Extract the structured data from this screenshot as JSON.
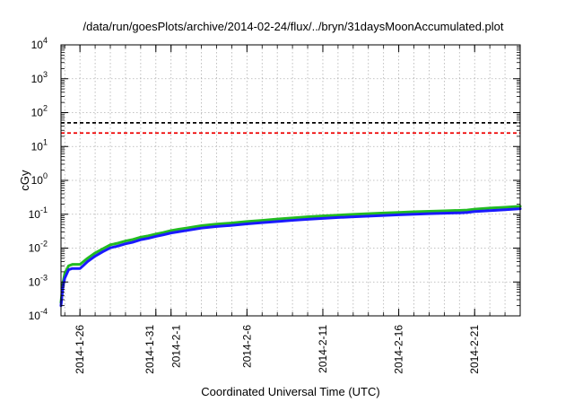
{
  "chart_data": {
    "type": "line",
    "title": "/data/run/goesPlots/archive/2014-02-24/flux/../bryn/31daysMoonAccumulated.plot",
    "xlabel": "Coordinated Universal Time (UTC)",
    "ylabel": "cGy",
    "y_scale": "log",
    "ylim": [
      0.0001,
      10000
    ],
    "xlim": [
      "2014-01-24T18:00",
      "2014-02-24T00:00"
    ],
    "grid": true,
    "y_ticks": [
      {
        "value": 0.0001,
        "base": "10",
        "exp": "-4"
      },
      {
        "value": 0.001,
        "base": "10",
        "exp": "-3"
      },
      {
        "value": 0.01,
        "base": "10",
        "exp": "-2"
      },
      {
        "value": 0.1,
        "base": "10",
        "exp": "-1"
      },
      {
        "value": 1,
        "base": "10",
        "exp": "0"
      },
      {
        "value": 10,
        "base": "10",
        "exp": "1"
      },
      {
        "value": 100,
        "base": "10",
        "exp": "2"
      },
      {
        "value": 1000,
        "base": "10",
        "exp": "3"
      },
      {
        "value": 10000,
        "base": "10",
        "exp": "4"
      }
    ],
    "x_ticks": [
      {
        "date": "2014-01-26",
        "label": "2014-1-26"
      },
      {
        "date": "2014-01-31",
        "label": "2014-1-31"
      },
      {
        "date": "2014-02-01",
        "label": "2014-2-1"
      },
      {
        "date": "2014-02-06",
        "label": "2014-2-6"
      },
      {
        "date": "2014-02-11",
        "label": "2014-2-11"
      },
      {
        "date": "2014-02-16",
        "label": "2014-2-16"
      },
      {
        "date": "2014-02-21",
        "label": "2014-2-21"
      }
    ],
    "reference_lines": [
      {
        "value": 50,
        "color": "#000000",
        "style": "dashed"
      },
      {
        "value": 25,
        "color": "#ee0000",
        "style": "dashed"
      }
    ],
    "x": [
      "2014-01-24T18:00",
      "2014-01-24T21:00",
      "2014-01-25T00:00",
      "2014-01-25T06:00",
      "2014-01-25T12:00",
      "2014-01-25T18:00",
      "2014-01-26T00:00",
      "2014-01-26T04:00",
      "2014-01-26T12:00",
      "2014-01-27T00:00",
      "2014-01-27T12:00",
      "2014-01-28T00:00",
      "2014-01-28T12:00",
      "2014-01-29T00:00",
      "2014-01-29T12:00",
      "2014-01-30T00:00",
      "2014-01-30T12:00",
      "2014-01-31T00:00",
      "2014-01-31T12:00",
      "2014-02-01T00:00",
      "2014-02-01T12:00",
      "2014-02-02T00:00",
      "2014-02-03T00:00",
      "2014-02-04T00:00",
      "2014-02-05T00:00",
      "2014-02-06T00:00",
      "2014-02-07T00:00",
      "2014-02-08T00:00",
      "2014-02-09T00:00",
      "2014-02-10T00:00",
      "2014-02-11T00:00",
      "2014-02-12T00:00",
      "2014-02-13T00:00",
      "2014-02-14T00:00",
      "2014-02-15T00:00",
      "2014-02-16T00:00",
      "2014-02-17T00:00",
      "2014-02-18T00:00",
      "2014-02-19T00:00",
      "2014-02-20T00:00",
      "2014-02-20T12:00",
      "2014-02-21T00:00",
      "2014-02-22T00:00",
      "2014-02-23T00:00",
      "2014-02-24T00:00"
    ],
    "series": [
      {
        "color": "#22bb22",
        "width": 3,
        "values": [
          0.00025,
          0.0009,
          0.0018,
          0.003,
          0.0033,
          0.0033,
          0.0033,
          0.0038,
          0.005,
          0.0072,
          0.0095,
          0.0125,
          0.014,
          0.0162,
          0.018,
          0.021,
          0.023,
          0.026,
          0.029,
          0.033,
          0.036,
          0.039,
          0.046,
          0.051,
          0.055,
          0.061,
          0.066,
          0.072,
          0.078,
          0.084,
          0.089,
          0.094,
          0.099,
          0.104,
          0.109,
          0.113,
          0.118,
          0.122,
          0.126,
          0.13,
          0.133,
          0.141,
          0.152,
          0.161,
          0.172
        ]
      },
      {
        "color": "#1a1aff",
        "width": 3,
        "values": [
          0.0002,
          0.0007,
          0.0013,
          0.0023,
          0.0025,
          0.0025,
          0.0025,
          0.0029,
          0.004,
          0.0058,
          0.0078,
          0.0102,
          0.0115,
          0.0134,
          0.015,
          0.0177,
          0.0195,
          0.0222,
          0.0248,
          0.028,
          0.0305,
          0.033,
          0.039,
          0.0435,
          0.047,
          0.052,
          0.0565,
          0.061,
          0.066,
          0.071,
          0.0755,
          0.08,
          0.084,
          0.088,
          0.092,
          0.096,
          0.1,
          0.104,
          0.107,
          0.11,
          0.113,
          0.12,
          0.128,
          0.136,
          0.145
        ]
      }
    ]
  }
}
